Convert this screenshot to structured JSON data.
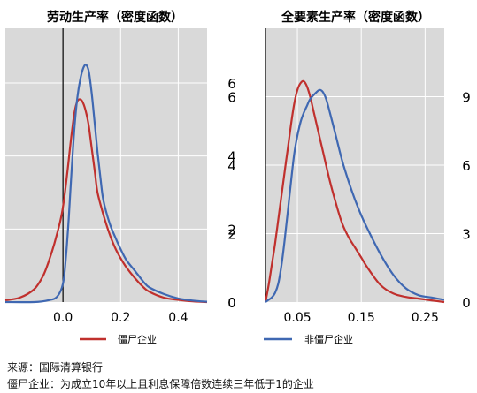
{
  "chart_data": [
    {
      "type": "line",
      "title": "劳动生产率（密度函数）",
      "xlim": [
        -0.2,
        0.5
      ],
      "ylim": [
        0,
        7.5
      ],
      "xticks": [
        0.0,
        0.2,
        0.4
      ],
      "xtick_labels": [
        "0.0",
        "0.2",
        "0.4"
      ],
      "yticks": [
        0,
        2,
        4,
        6
      ],
      "ytick_labels": [
        "0",
        "2",
        "4",
        "6"
      ],
      "grid": true,
      "vline_x": 0.0,
      "series": [
        {
          "name": "僵尸企业",
          "color": "#c0302d",
          "x": [
            -0.2,
            -0.15,
            -0.1,
            -0.07,
            -0.05,
            -0.03,
            -0.01,
            0.0,
            0.01,
            0.02,
            0.03,
            0.04,
            0.05,
            0.06,
            0.07,
            0.08,
            0.09,
            0.1,
            0.11,
            0.12,
            0.14,
            0.16,
            0.18,
            0.2,
            0.22,
            0.25,
            0.28,
            0.3,
            0.35,
            0.4,
            0.45,
            0.5
          ],
          "y": [
            0.05,
            0.12,
            0.35,
            0.7,
            1.1,
            1.6,
            2.2,
            2.6,
            3.2,
            3.9,
            4.6,
            5.2,
            5.5,
            5.55,
            5.45,
            5.2,
            4.8,
            4.2,
            3.6,
            3.0,
            2.4,
            1.9,
            1.5,
            1.2,
            0.95,
            0.65,
            0.4,
            0.28,
            0.12,
            0.06,
            0.02,
            0.0
          ]
        },
        {
          "name": "非僵尸企业",
          "color": "#3f68b2",
          "x": [
            -0.2,
            -0.1,
            -0.05,
            -0.02,
            0.0,
            0.01,
            0.02,
            0.03,
            0.04,
            0.05,
            0.06,
            0.07,
            0.08,
            0.09,
            0.1,
            0.11,
            0.12,
            0.13,
            0.14,
            0.16,
            0.18,
            0.2,
            0.22,
            0.25,
            0.28,
            0.3,
            0.35,
            0.4,
            0.45,
            0.5
          ],
          "y": [
            0.0,
            0.0,
            0.05,
            0.15,
            0.5,
            1.2,
            2.3,
            3.6,
            4.8,
            5.6,
            6.1,
            6.4,
            6.5,
            6.3,
            5.7,
            4.9,
            4.1,
            3.4,
            2.8,
            2.2,
            1.8,
            1.45,
            1.15,
            0.85,
            0.55,
            0.4,
            0.22,
            0.1,
            0.04,
            0.01
          ]
        }
      ]
    },
    {
      "type": "line",
      "title": "全要素生产率（密度函数）",
      "xlim": [
        0.0,
        0.28
      ],
      "xticks": [
        0.05,
        0.15,
        0.25
      ],
      "xtick_labels": [
        "0.05",
        "0.15",
        "0.25"
      ],
      "grid": true,
      "vline_x": 0.0,
      "series": [
        {
          "name": "僵尸企业",
          "color": "#c0302d",
          "y_axis": "left",
          "ylim": [
            0,
            8
          ],
          "yticks": [
            0,
            2,
            4,
            6
          ],
          "ytick_labels": [
            "0",
            "2",
            "4",
            "6"
          ],
          "x": [
            0.0,
            0.005,
            0.01,
            0.015,
            0.02,
            0.025,
            0.03,
            0.035,
            0.04,
            0.045,
            0.05,
            0.055,
            0.06,
            0.065,
            0.07,
            0.075,
            0.08,
            0.09,
            0.1,
            0.11,
            0.12,
            0.13,
            0.14,
            0.15,
            0.16,
            0.18,
            0.2,
            0.22,
            0.24,
            0.26,
            0.28
          ],
          "y": [
            0.0,
            0.5,
            1.1,
            1.7,
            2.4,
            3.1,
            3.8,
            4.5,
            5.2,
            5.8,
            6.2,
            6.4,
            6.45,
            6.3,
            6.0,
            5.6,
            5.2,
            4.4,
            3.6,
            2.9,
            2.3,
            1.9,
            1.6,
            1.3,
            1.0,
            0.5,
            0.25,
            0.15,
            0.1,
            0.05,
            0.0
          ]
        },
        {
          "name": "非僵尸企业",
          "color": "#3f68b2",
          "y_axis": "right",
          "ylim": [
            0,
            12
          ],
          "yticks": [
            0,
            3,
            6,
            9
          ],
          "ytick_labels": [
            "0",
            "3",
            "6",
            "9"
          ],
          "x": [
            0.0,
            0.005,
            0.01,
            0.015,
            0.02,
            0.025,
            0.03,
            0.035,
            0.04,
            0.045,
            0.05,
            0.055,
            0.06,
            0.065,
            0.07,
            0.08,
            0.085,
            0.09,
            0.095,
            0.1,
            0.11,
            0.12,
            0.13,
            0.14,
            0.15,
            0.16,
            0.18,
            0.2,
            0.22,
            0.24,
            0.26,
            0.28
          ],
          "y": [
            0.0,
            0.1,
            0.2,
            0.4,
            0.8,
            1.6,
            2.7,
            4.0,
            5.3,
            6.5,
            7.3,
            7.9,
            8.3,
            8.6,
            8.9,
            9.2,
            9.3,
            9.2,
            8.9,
            8.4,
            7.3,
            6.2,
            5.3,
            4.5,
            3.8,
            3.2,
            2.1,
            1.2,
            0.6,
            0.3,
            0.2,
            0.1
          ]
        }
      ]
    }
  ],
  "legend": [
    {
      "label": "僵尸企业",
      "color": "#c0302d"
    },
    {
      "label": "非僵尸企业",
      "color": "#3f68b2"
    }
  ],
  "footer": {
    "source": "来源：国际清算银行",
    "note": "僵尸企业：为成立10年以上且利息保障倍数连续三年低于1的企业"
  }
}
